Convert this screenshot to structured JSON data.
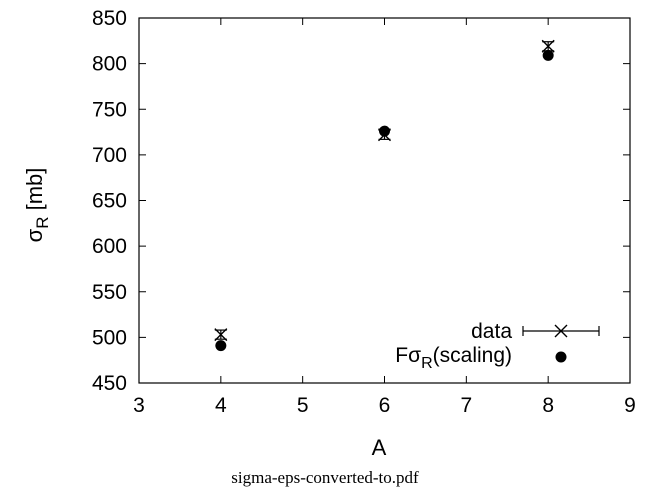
{
  "chart_data": {
    "type": "scatter",
    "xlabel": "A",
    "ylabel_main": "σ",
    "ylabel_sub": "R",
    "ylabel_unit": " [mb]",
    "xlim": [
      3,
      9
    ],
    "ylim": [
      450,
      850
    ],
    "xticks": [
      3,
      4,
      5,
      6,
      7,
      8,
      9
    ],
    "yticks": [
      450,
      500,
      550,
      600,
      650,
      700,
      750,
      800,
      850
    ],
    "grid": false,
    "legend_position": "bottom-right",
    "series": [
      {
        "name": "data",
        "marker": "cross-with-errorbar",
        "points": [
          {
            "x": 4,
            "y": 503,
            "err": 5
          },
          {
            "x": 6,
            "y": 722,
            "err": 5
          },
          {
            "x": 8,
            "y": 819,
            "err": 5
          }
        ]
      },
      {
        "name_main": "Fσ",
        "name_sub": "R",
        "name_tail": "(scaling)",
        "marker": "filled-circle",
        "points": [
          {
            "x": 4,
            "y": 491
          },
          {
            "x": 6,
            "y": 726
          },
          {
            "x": 8,
            "y": 809
          }
        ]
      }
    ]
  },
  "caption": "sigma-eps-converted-to.pdf"
}
